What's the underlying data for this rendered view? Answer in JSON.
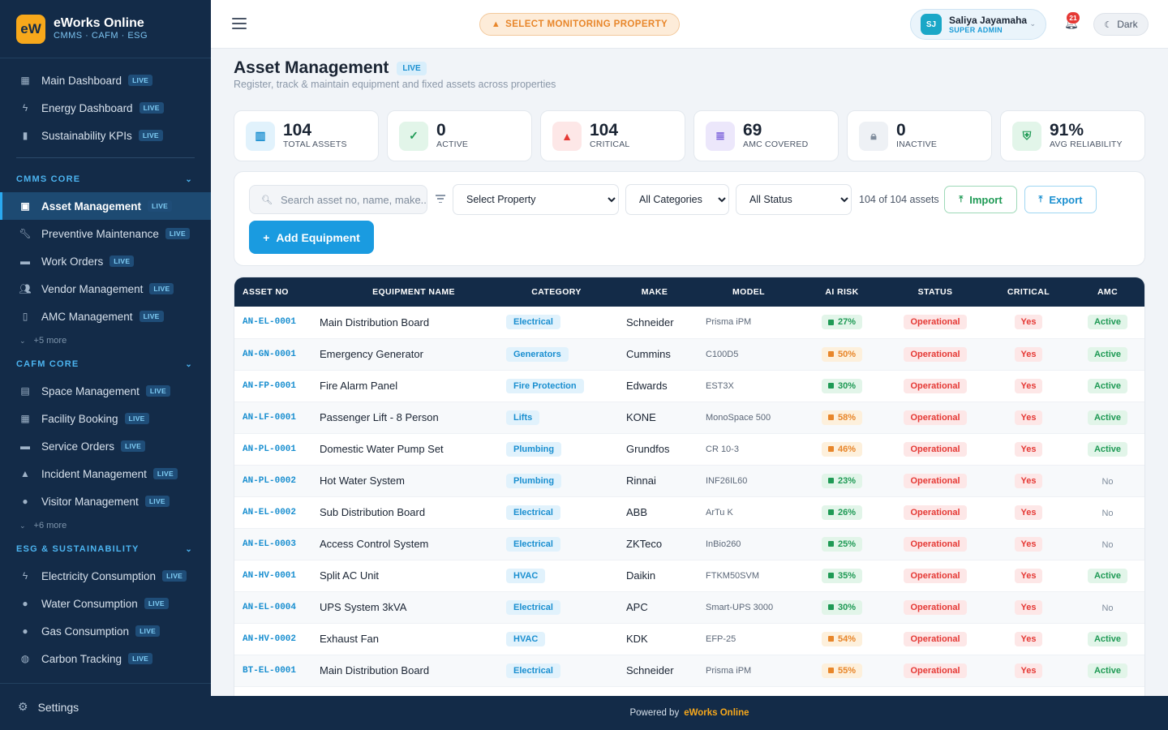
{
  "brand": {
    "logo_text": "eW",
    "name": "eWorks Online",
    "subtitle": "CMMS · CAFM · ESG"
  },
  "sidebar": {
    "top_items": [
      {
        "label": "Main Dashboard",
        "badge": "LIVE",
        "icon": "dashboard-icon"
      },
      {
        "label": "Energy Dashboard",
        "badge": "LIVE",
        "icon": "bolt-icon"
      },
      {
        "label": "Sustainability KPIs",
        "badge": "LIVE",
        "icon": "document-icon"
      }
    ],
    "sections": [
      {
        "title": "CMMS CORE",
        "items": [
          {
            "label": "Asset Management",
            "badge": "LIVE",
            "icon": "asset-icon",
            "active": true
          },
          {
            "label": "Preventive Maintenance",
            "badge": "LIVE",
            "icon": "wrench-icon"
          },
          {
            "label": "Work Orders",
            "badge": "LIVE",
            "icon": "clipboard-icon"
          },
          {
            "label": "Vendor Management",
            "badge": "LIVE",
            "icon": "users-icon"
          },
          {
            "label": "AMC Management",
            "badge": "LIVE",
            "icon": "file-icon"
          }
        ],
        "more": "+5 more"
      },
      {
        "title": "CAFM CORE",
        "items": [
          {
            "label": "Space Management",
            "badge": "LIVE",
            "icon": "building-icon"
          },
          {
            "label": "Facility Booking",
            "badge": "LIVE",
            "icon": "calendar-icon"
          },
          {
            "label": "Service Orders",
            "badge": "LIVE",
            "icon": "service-icon"
          },
          {
            "label": "Incident Management",
            "badge": "LIVE",
            "icon": "warning-icon"
          },
          {
            "label": "Visitor Management",
            "badge": "LIVE",
            "icon": "person-icon"
          }
        ],
        "more": "+6 more"
      },
      {
        "title": "ESG & SUSTAINABILITY",
        "items": [
          {
            "label": "Electricity Consumption",
            "badge": "LIVE",
            "icon": "bolt-icon"
          },
          {
            "label": "Water Consumption",
            "badge": "LIVE",
            "icon": "drop-icon"
          },
          {
            "label": "Gas Consumption",
            "badge": "LIVE",
            "icon": "flame-icon"
          },
          {
            "label": "Carbon Tracking",
            "badge": "LIVE",
            "icon": "globe-icon"
          }
        ]
      }
    ],
    "settings_label": "Settings"
  },
  "topbar": {
    "monitor_label": "SELECT MONITORING PROPERTY",
    "user": {
      "initials": "SJ",
      "name": "Saliya Jayamaha",
      "role": "SUPER ADMIN"
    },
    "notification_count": "21",
    "theme_label": "Dark"
  },
  "page": {
    "title": "Asset Management",
    "badge": "LIVE",
    "subtitle": "Register, track & maintain equipment and fixed assets across properties"
  },
  "stats": [
    {
      "value": "104",
      "label": "TOTAL ASSETS",
      "icon": "chart-icon",
      "color": "#1a8fd0",
      "bg": "#e1f2fc"
    },
    {
      "value": "0",
      "label": "ACTIVE",
      "icon": "check-icon",
      "color": "#1f9a55",
      "bg": "#e2f5e9"
    },
    {
      "value": "104",
      "label": "CRITICAL",
      "icon": "alert-icon",
      "color": "#e53935",
      "bg": "#fde7e7"
    },
    {
      "value": "69",
      "label": "AMC COVERED",
      "icon": "contract-icon",
      "color": "#6c4fd6",
      "bg": "#ece7fb"
    },
    {
      "value": "0",
      "label": "INACTIVE",
      "icon": "lock-icon",
      "color": "#7f8c9c",
      "bg": "#eef1f5"
    },
    {
      "value": "91%",
      "label": "AVG RELIABILITY",
      "icon": "shield-icon",
      "color": "#1f9a55",
      "bg": "#e2f5e9"
    }
  ],
  "filters": {
    "search_placeholder": "Search asset no, name, make...",
    "property_select": "Select Property",
    "category_select": "All Categories",
    "status_select": "All Status",
    "count_text": "104 of 104 assets",
    "import_label": "Import",
    "export_label": "Export",
    "add_label": "Add Equipment"
  },
  "table": {
    "columns": [
      "ASSET NO",
      "EQUIPMENT NAME",
      "CATEGORY",
      "MAKE",
      "MODEL",
      "AI RISK",
      "STATUS",
      "CRITICAL",
      "AMC"
    ],
    "rows": [
      {
        "asset_no": "AN-EL-0001",
        "name": "Main Distribution Board",
        "category": "Electrical",
        "make": "Schneider",
        "model": "Prisma iPM",
        "risk": "27%",
        "risk_level": "low",
        "status": "Operational",
        "critical": "Yes",
        "amc": "Active"
      },
      {
        "asset_no": "AN-GN-0001",
        "name": "Emergency Generator",
        "category": "Generators",
        "make": "Cummins",
        "model": "C100D5",
        "risk": "50%",
        "risk_level": "med",
        "status": "Operational",
        "critical": "Yes",
        "amc": "Active"
      },
      {
        "asset_no": "AN-FP-0001",
        "name": "Fire Alarm Panel",
        "category": "Fire Protection",
        "make": "Edwards",
        "model": "EST3X",
        "risk": "30%",
        "risk_level": "low",
        "status": "Operational",
        "critical": "Yes",
        "amc": "Active"
      },
      {
        "asset_no": "AN-LF-0001",
        "name": "Passenger Lift - 8 Person",
        "category": "Lifts",
        "make": "KONE",
        "model": "MonoSpace 500",
        "risk": "58%",
        "risk_level": "med",
        "status": "Operational",
        "critical": "Yes",
        "amc": "Active"
      },
      {
        "asset_no": "AN-PL-0001",
        "name": "Domestic Water Pump Set",
        "category": "Plumbing",
        "make": "Grundfos",
        "model": "CR 10-3",
        "risk": "46%",
        "risk_level": "med",
        "status": "Operational",
        "critical": "Yes",
        "amc": "Active"
      },
      {
        "asset_no": "AN-PL-0002",
        "name": "Hot Water System",
        "category": "Plumbing",
        "make": "Rinnai",
        "model": "INF26IL60",
        "risk": "23%",
        "risk_level": "low",
        "status": "Operational",
        "critical": "Yes",
        "amc": "No"
      },
      {
        "asset_no": "AN-EL-0002",
        "name": "Sub Distribution Board",
        "category": "Electrical",
        "make": "ABB",
        "model": "ArTu K",
        "risk": "26%",
        "risk_level": "low",
        "status": "Operational",
        "critical": "Yes",
        "amc": "No"
      },
      {
        "asset_no": "AN-EL-0003",
        "name": "Access Control System",
        "category": "Electrical",
        "make": "ZKTeco",
        "model": "InBio260",
        "risk": "25%",
        "risk_level": "low",
        "status": "Operational",
        "critical": "Yes",
        "amc": "No"
      },
      {
        "asset_no": "AN-HV-0001",
        "name": "Split AC Unit",
        "category": "HVAC",
        "make": "Daikin",
        "model": "FTKM50SVM",
        "risk": "35%",
        "risk_level": "low",
        "status": "Operational",
        "critical": "Yes",
        "amc": "Active"
      },
      {
        "asset_no": "AN-EL-0004",
        "name": "UPS System 3kVA",
        "category": "Electrical",
        "make": "APC",
        "model": "Smart-UPS 3000",
        "risk": "30%",
        "risk_level": "low",
        "status": "Operational",
        "critical": "Yes",
        "amc": "No"
      },
      {
        "asset_no": "AN-HV-0002",
        "name": "Exhaust Fan",
        "category": "HVAC",
        "make": "KDK",
        "model": "EFP-25",
        "risk": "54%",
        "risk_level": "med",
        "status": "Operational",
        "critical": "Yes",
        "amc": "Active"
      },
      {
        "asset_no": "BT-EL-0001",
        "name": "Main Distribution Board",
        "category": "Electrical",
        "make": "Schneider",
        "model": "Prisma iPM",
        "risk": "55%",
        "risk_level": "med",
        "status": "Operational",
        "critical": "Yes",
        "amc": "Active"
      }
    ]
  },
  "footer": {
    "prefix": "Powered by",
    "brand": "eWorks Online"
  }
}
